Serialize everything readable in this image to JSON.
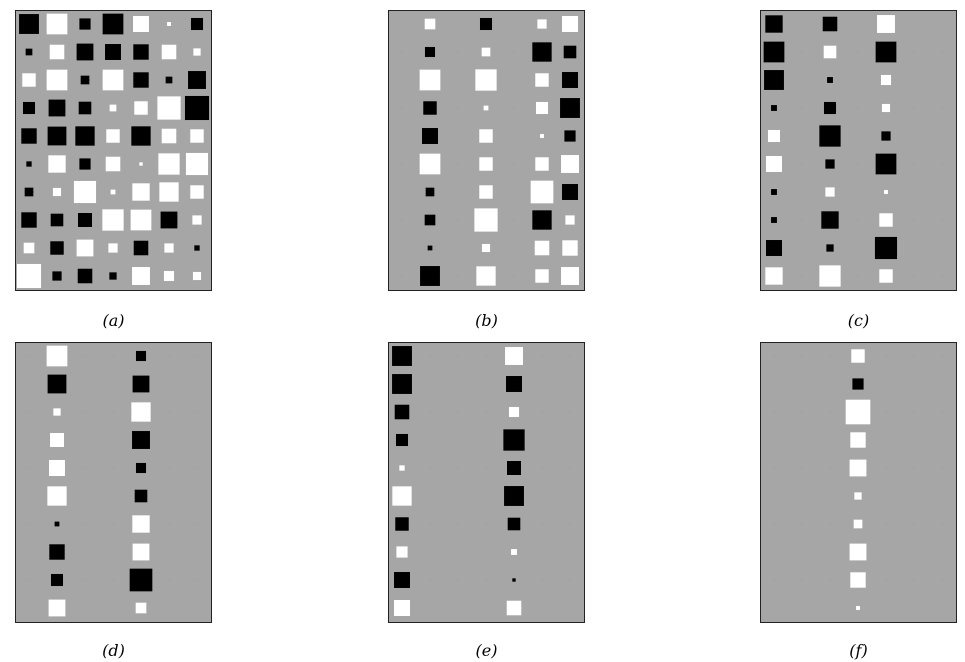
{
  "colors": {
    "background": "#a6a6a6",
    "positive": "#ffffff",
    "negative": "#000000",
    "border": "#222222"
  },
  "panels": [
    {
      "label": "(a)",
      "matrix": [
        [
          -0.71,
          0.74,
          -0.4,
          -0.74,
          0.57,
          0.14,
          -0.43
        ],
        [
          -0.24,
          0.52,
          -0.6,
          -0.57,
          -0.55,
          0.52,
          0.26
        ],
        [
          0.48,
          0.74,
          -0.31,
          0.74,
          -0.55,
          -0.24,
          -0.64
        ],
        [
          -0.43,
          -0.6,
          -0.45,
          0.24,
          0.48,
          0.83,
          -0.86
        ],
        [
          -0.55,
          -0.67,
          -0.69,
          0.48,
          -0.69,
          0.52,
          0.48
        ],
        [
          -0.19,
          0.62,
          -0.4,
          0.52,
          0.12,
          0.76,
          0.79
        ],
        [
          -0.31,
          0.29,
          0.79,
          0.17,
          0.62,
          0.69,
          0.48
        ],
        [
          -0.55,
          -0.45,
          -0.5,
          0.76,
          0.74,
          -0.6,
          0.33
        ],
        [
          0.38,
          -0.48,
          0.6,
          0.33,
          -0.52,
          0.33,
          -0.19
        ],
        [
          0.86,
          -0.33,
          -0.52,
          -0.26,
          0.64,
          0.36,
          0.29
        ]
      ]
    },
    {
      "label": "(b)",
      "matrix": [
        [
          0,
          0.38,
          0,
          -0.43,
          0,
          0.33,
          0.57
        ],
        [
          0,
          -0.36,
          0,
          0.31,
          0,
          -0.69,
          -0.45
        ],
        [
          0,
          0.74,
          0,
          0.76,
          0,
          0.48,
          -0.57
        ],
        [
          0,
          -0.48,
          0,
          0.17,
          0,
          0.43,
          -0.71
        ],
        [
          0,
          -0.57,
          0,
          0.48,
          0,
          0.14,
          -0.4
        ],
        [
          0,
          0.74,
          0,
          0.48,
          0,
          0.48,
          0.64
        ],
        [
          0,
          -0.31,
          0,
          0.48,
          0,
          0.81,
          -0.57
        ],
        [
          0,
          -0.38,
          0,
          0.83,
          0,
          -0.69,
          0.33
        ],
        [
          0,
          -0.17,
          0,
          0.29,
          0,
          0.52,
          0.55
        ],
        [
          0,
          -0.71,
          0,
          0.69,
          0,
          0.48,
          0.64
        ]
      ]
    },
    {
      "label": "(c)",
      "matrix": [
        [
          -0.62,
          0,
          -0.52,
          0,
          0.64,
          0,
          0
        ],
        [
          -0.74,
          0,
          0.45,
          0,
          -0.74,
          0,
          0
        ],
        [
          -0.71,
          0,
          -0.21,
          0,
          0.36,
          0,
          0
        ],
        [
          -0.21,
          0,
          -0.43,
          0,
          0.29,
          0,
          0
        ],
        [
          0.43,
          0,
          -0.76,
          0,
          -0.33,
          0,
          0
        ],
        [
          0.57,
          0,
          -0.33,
          0,
          -0.74,
          0,
          0
        ],
        [
          -0.21,
          0,
          0.33,
          0,
          0.14,
          0,
          0
        ],
        [
          -0.21,
          0,
          -0.62,
          0,
          0.48,
          0,
          0
        ],
        [
          -0.57,
          0,
          -0.26,
          0,
          -0.79,
          0,
          0
        ],
        [
          0.62,
          0,
          0.76,
          0,
          0.48,
          0,
          0
        ]
      ]
    },
    {
      "label": "(d)",
      "matrix": [
        [
          0,
          0.74,
          0,
          0,
          -0.36,
          0,
          0
        ],
        [
          0,
          -0.67,
          0,
          0,
          -0.6,
          0,
          0
        ],
        [
          0,
          0.26,
          0,
          0,
          0.69,
          0,
          0
        ],
        [
          0,
          0.5,
          0,
          0,
          -0.64,
          0,
          0
        ],
        [
          0,
          0.57,
          0,
          0,
          -0.36,
          0,
          0
        ],
        [
          0,
          0.69,
          0,
          0,
          -0.45,
          0,
          0
        ],
        [
          0,
          -0.17,
          0,
          0,
          0.62,
          0,
          0
        ],
        [
          0,
          -0.55,
          0,
          0,
          0.6,
          0,
          0
        ],
        [
          0,
          -0.43,
          0,
          0,
          -0.81,
          0,
          0
        ],
        [
          0,
          0.6,
          0,
          0,
          0.38,
          0,
          0
        ]
      ]
    },
    {
      "label": "(e)",
      "matrix": [
        [
          -0.71,
          0,
          0,
          0,
          0.64,
          0,
          0
        ],
        [
          -0.71,
          0,
          0,
          0,
          -0.57,
          0,
          0
        ],
        [
          -0.52,
          0,
          0,
          0,
          0.36,
          0,
          0
        ],
        [
          -0.43,
          0,
          0,
          0,
          -0.76,
          0,
          0
        ],
        [
          0.19,
          0,
          0,
          0,
          -0.5,
          0,
          0
        ],
        [
          0.69,
          0,
          0,
          0,
          -0.71,
          0,
          0
        ],
        [
          -0.48,
          0,
          0,
          0,
          -0.45,
          0,
          0
        ],
        [
          0.4,
          0,
          0,
          0,
          0.21,
          0,
          0
        ],
        [
          -0.57,
          0,
          0,
          0,
          -0.12,
          0,
          0
        ],
        [
          0.57,
          0,
          0,
          0,
          0.52,
          0,
          0
        ]
      ]
    },
    {
      "label": "(f)",
      "matrix": [
        [
          0,
          0,
          0,
          0.48,
          0,
          0,
          0
        ],
        [
          0,
          0,
          0,
          -0.4,
          0,
          0,
          0
        ],
        [
          0,
          0,
          0,
          0.88,
          0,
          0,
          0
        ],
        [
          0,
          0,
          0,
          0.55,
          0,
          0,
          0
        ],
        [
          0,
          0,
          0,
          0.6,
          0,
          0,
          0
        ],
        [
          0,
          0,
          0,
          0.26,
          0,
          0,
          0
        ],
        [
          0,
          0,
          0,
          0.31,
          0,
          0,
          0
        ],
        [
          0,
          0,
          0,
          0.6,
          0,
          0,
          0
        ],
        [
          0,
          0,
          0,
          0.55,
          0,
          0,
          0
        ],
        [
          0,
          0,
          0,
          0.14,
          0,
          0,
          0
        ]
      ]
    }
  ]
}
